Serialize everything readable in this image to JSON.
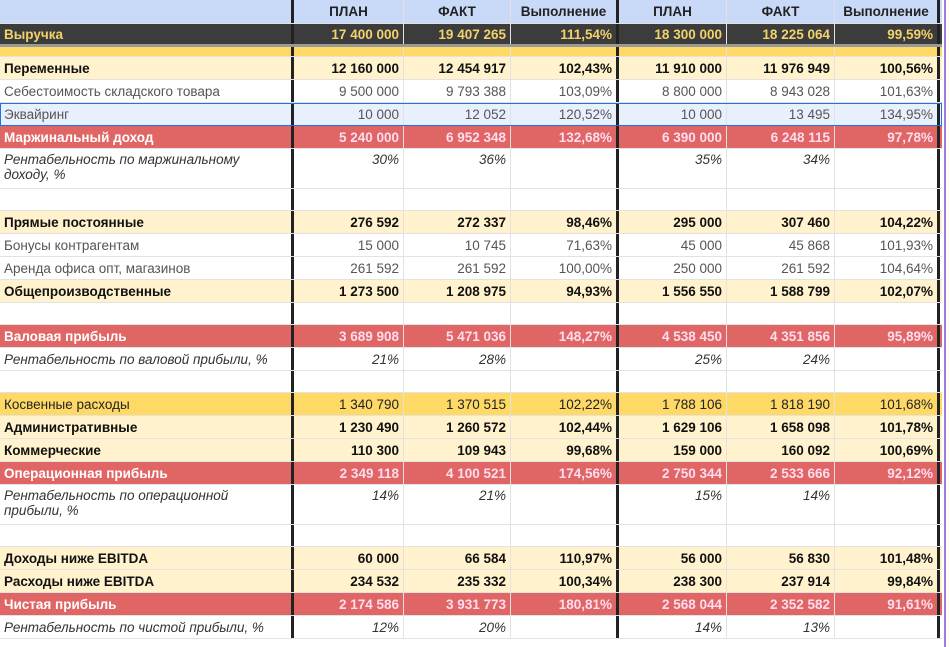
{
  "header": {
    "label": "",
    "cols": [
      "ПЛАН",
      "ФАКТ",
      "Выполнение",
      "ПЛАН",
      "ФАКТ",
      "Выполнение"
    ]
  },
  "revenue": {
    "label": "Выручка",
    "values": [
      "17 400 000",
      "19 407 265",
      "111,54%",
      "18 300 000",
      "18 225 064",
      "99,59%"
    ]
  },
  "rows": [
    {
      "type": "bold",
      "label": "Переменные",
      "values": [
        "12 160 000",
        "12 454 917",
        "102,43%",
        "11 910 000",
        "11 976 949",
        "100,56%"
      ]
    },
    {
      "type": "plain",
      "label": "Себестоимость складского товара",
      "values": [
        "9 500 000",
        "9 793 388",
        "103,09%",
        "8 800 000",
        "8 943 028",
        "101,63%"
      ]
    },
    {
      "type": "sel",
      "label": "Эквайринг",
      "values": [
        "10 000",
        "12 052",
        "120,52%",
        "10 000",
        "13 495",
        "134,95%"
      ]
    },
    {
      "type": "red",
      "label": "Маржинальный доход",
      "values": [
        "5 240 000",
        "6 952 348",
        "132,68%",
        "6 390 000",
        "6 248 115",
        "97,78%"
      ]
    },
    {
      "type": "ital2",
      "label": "Рентабельность по маржинальному доходу, %",
      "values": [
        "30%",
        "36%",
        "",
        "35%",
        "34%",
        ""
      ]
    },
    {
      "type": "empty",
      "label": "",
      "values": [
        "",
        "",
        "",
        "",
        "",
        ""
      ]
    },
    {
      "type": "bold",
      "label": "Прямые постоянные",
      "values": [
        "276 592",
        "272 337",
        "98,46%",
        "295 000",
        "307 460",
        "104,22%"
      ]
    },
    {
      "type": "plain",
      "label": "Бонусы контрагентам",
      "values": [
        "15 000",
        "10 745",
        "71,63%",
        "45 000",
        "45 868",
        "101,93%"
      ]
    },
    {
      "type": "plain",
      "label": "Аренда офиса опт, магазинов",
      "values": [
        "261 592",
        "261 592",
        "100,00%",
        "250 000",
        "261 592",
        "104,64%"
      ]
    },
    {
      "type": "bold",
      "label": "Общепроизводственные",
      "values": [
        "1 273 500",
        "1 208 975",
        "94,93%",
        "1 556 550",
        "1 588 799",
        "102,07%"
      ]
    },
    {
      "type": "empty",
      "label": "",
      "values": [
        "",
        "",
        "",
        "",
        "",
        ""
      ]
    },
    {
      "type": "red",
      "label": "Валовая прибыль",
      "values": [
        "3 689 908",
        "5 471 036",
        "148,27%",
        "4 538 450",
        "4 351 856",
        "95,89%"
      ]
    },
    {
      "type": "ital",
      "label": "Рентабельность по валовой прибыли, %",
      "values": [
        "21%",
        "28%",
        "",
        "25%",
        "24%",
        ""
      ]
    },
    {
      "type": "empty",
      "label": "",
      "values": [
        "",
        "",
        "",
        "",
        "",
        ""
      ]
    },
    {
      "type": "kos",
      "label": "Косвенные расходы",
      "values": [
        "1 340 790",
        "1 370 515",
        "102,22%",
        "1 788 106",
        "1 818 190",
        "101,68%"
      ]
    },
    {
      "type": "bold",
      "label": "Административные",
      "values": [
        "1 230 490",
        "1 260 572",
        "102,44%",
        "1 629 106",
        "1 658 098",
        "101,78%"
      ]
    },
    {
      "type": "bold",
      "label": "Коммерческие",
      "values": [
        "110 300",
        "109 943",
        "99,68%",
        "159 000",
        "160 092",
        "100,69%"
      ]
    },
    {
      "type": "red",
      "label": "Операционная прибыль",
      "values": [
        "2 349 118",
        "4 100 521",
        "174,56%",
        "2 750 344",
        "2 533 666",
        "92,12%"
      ]
    },
    {
      "type": "ital2",
      "label": "Рентабельность по операционной прибыли, %",
      "values": [
        "14%",
        "21%",
        "",
        "15%",
        "14%",
        ""
      ]
    },
    {
      "type": "empty",
      "label": "",
      "values": [
        "",
        "",
        "",
        "",
        "",
        ""
      ]
    },
    {
      "type": "bold",
      "label": "Доходы ниже EBITDA",
      "values": [
        "60 000",
        "66 584",
        "110,97%",
        "56 000",
        "56 830",
        "101,48%"
      ]
    },
    {
      "type": "bold",
      "label": "Расходы ниже EBITDA",
      "values": [
        "234 532",
        "235 332",
        "100,34%",
        "238 300",
        "237 914",
        "99,84%"
      ]
    },
    {
      "type": "red",
      "label": "Чистая прибыль",
      "values": [
        "2 174 586",
        "3 931 773",
        "180,81%",
        "2 568 044",
        "2 352 582",
        "91,61%"
      ]
    },
    {
      "type": "ital",
      "label": "Рентабельность по чистой прибыли, %",
      "values": [
        "12%",
        "20%",
        "",
        "14%",
        "13%",
        ""
      ]
    }
  ]
}
